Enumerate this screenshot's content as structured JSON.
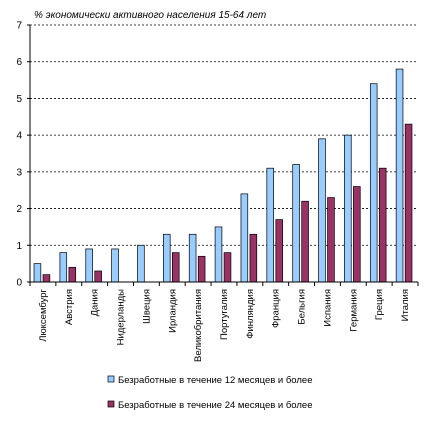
{
  "chart_data": {
    "type": "bar",
    "title": "",
    "subtitle": "% экономически активного населения 15-64 лет",
    "xlabel": "",
    "ylabel": "",
    "ylim": [
      0,
      7
    ],
    "yticks": [
      0,
      1,
      2,
      3,
      4,
      5,
      6,
      7
    ],
    "grid": "horizontal-dashed",
    "legend_position": "bottom",
    "categories": [
      "Люксембург",
      "Австрия",
      "Дания",
      "Нидерланды",
      "Швеция",
      "Ирландия",
      "Великобритания",
      "Португалия",
      "Финляндия",
      "Франция",
      "Бельгия",
      "Испания",
      "Германия",
      "Греция",
      "Италия"
    ],
    "series": [
      {
        "name": "Безработные в течение 12 месяцев и более",
        "color": "#99ccff",
        "values": [
          0.5,
          0.8,
          0.9,
          0.9,
          1.0,
          1.3,
          1.3,
          1.5,
          2.4,
          3.1,
          3.2,
          3.9,
          4.0,
          5.4,
          5.8
        ]
      },
      {
        "name": "Безработные в течение 24 месяцев и более",
        "color": "#993366",
        "values": [
          0.2,
          0.4,
          0.3,
          null,
          null,
          0.8,
          0.7,
          0.8,
          1.3,
          1.7,
          2.2,
          2.3,
          2.6,
          3.1,
          4.3
        ]
      }
    ]
  }
}
